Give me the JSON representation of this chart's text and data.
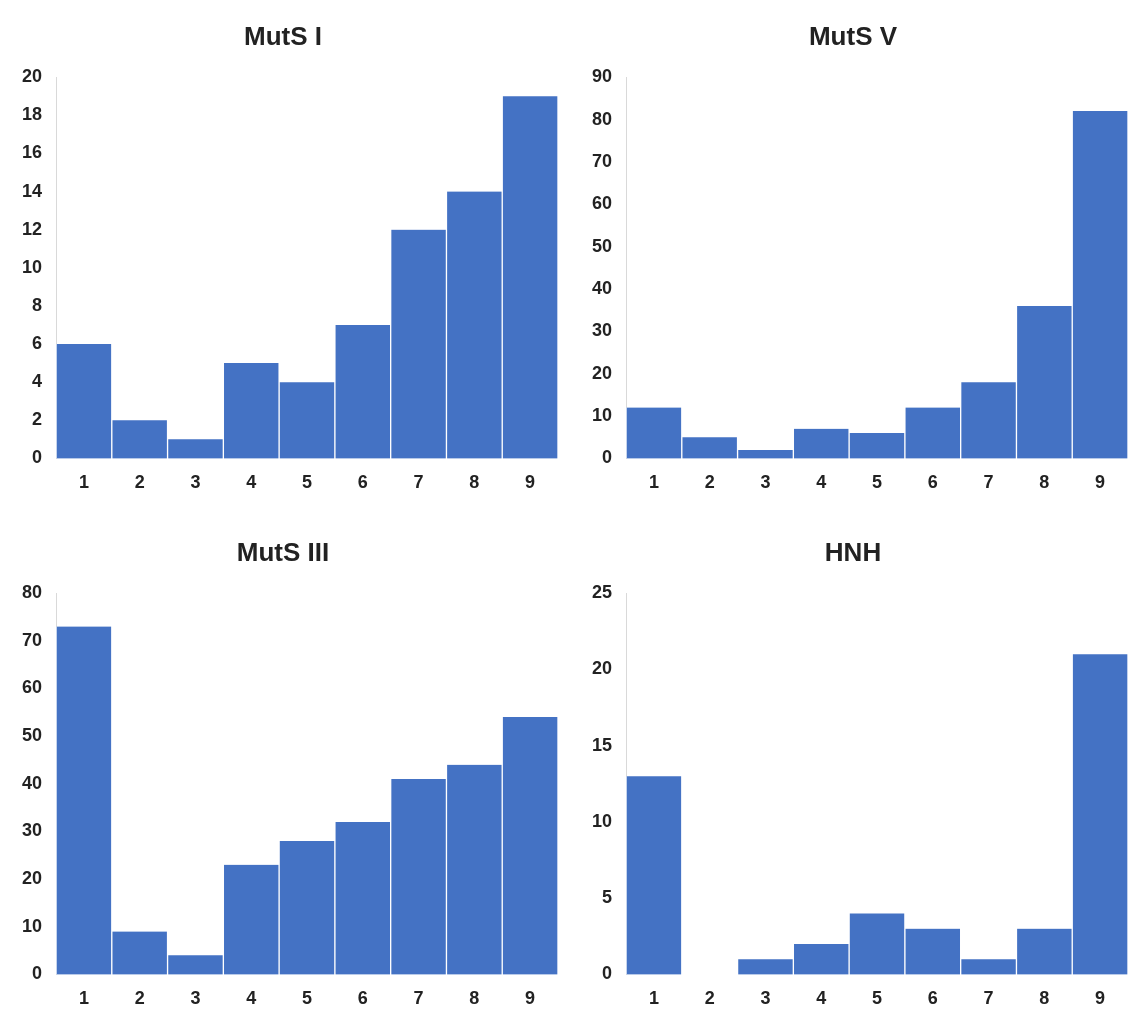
{
  "chart_data": [
    {
      "type": "bar",
      "title": "MutS I",
      "categories": [
        "1",
        "2",
        "3",
        "4",
        "5",
        "6",
        "7",
        "8",
        "9"
      ],
      "values": [
        6,
        2,
        1,
        5,
        4,
        7,
        12,
        14,
        19
      ],
      "color": "#4472c4",
      "ylim": [
        0,
        20
      ],
      "yticks": [
        0,
        2,
        4,
        6,
        8,
        10,
        12,
        14,
        16,
        18,
        20
      ]
    },
    {
      "type": "bar",
      "title": "MutS V",
      "categories": [
        "1",
        "2",
        "3",
        "4",
        "5",
        "6",
        "7",
        "8",
        "9"
      ],
      "values": [
        12,
        5,
        2,
        7,
        6,
        12,
        18,
        36,
        82
      ],
      "color": "#4472c4",
      "ylim": [
        0,
        90
      ],
      "yticks": [
        0,
        10,
        20,
        30,
        40,
        50,
        60,
        70,
        80,
        90
      ]
    },
    {
      "type": "bar",
      "title": "MutS III",
      "categories": [
        "1",
        "2",
        "3",
        "4",
        "5",
        "6",
        "7",
        "8",
        "9"
      ],
      "values": [
        73,
        9,
        4,
        23,
        28,
        32,
        41,
        44,
        54
      ],
      "color": "#4472c4",
      "ylim": [
        0,
        80
      ],
      "yticks": [
        0,
        10,
        20,
        30,
        40,
        50,
        60,
        70,
        80
      ]
    },
    {
      "type": "bar",
      "title": "HNH",
      "categories": [
        "1",
        "2",
        "3",
        "4",
        "5",
        "6",
        "7",
        "8",
        "9"
      ],
      "values": [
        13,
        0,
        1,
        2,
        4,
        3,
        1,
        3,
        21
      ],
      "color": "#4472c4",
      "ylim": [
        0,
        25
      ],
      "yticks": [
        0,
        5,
        10,
        15,
        20,
        25
      ]
    }
  ]
}
